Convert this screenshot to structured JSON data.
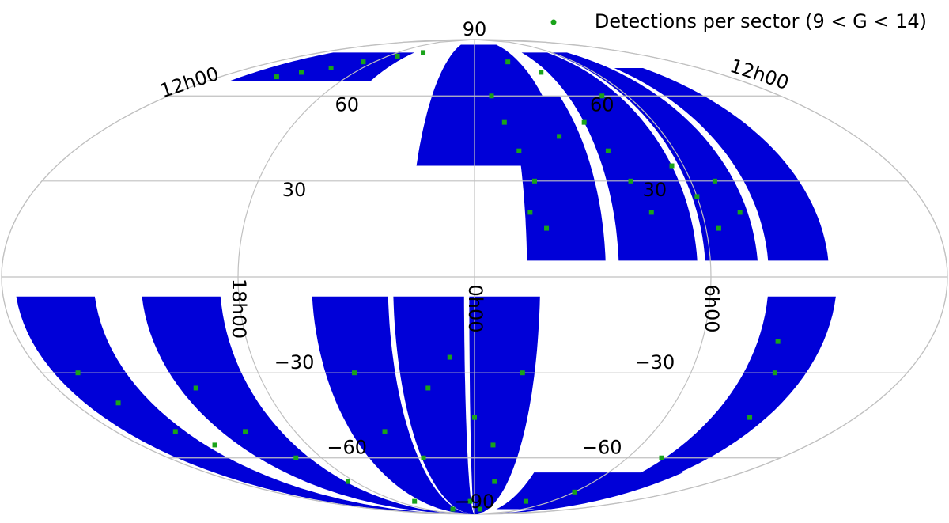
{
  "chart_data": {
    "type": "mollweide",
    "xlim": [
      -180,
      180
    ],
    "ylim": [
      -90,
      90
    ],
    "xticks": [
      {
        "value": -180,
        "label": "12h00"
      },
      {
        "value": -90,
        "label": "18h00"
      },
      {
        "value": 0,
        "label": "0h00"
      },
      {
        "value": 90,
        "label": "6h00"
      },
      {
        "value": 180,
        "label": "12h00"
      }
    ],
    "yticks": [
      90,
      60,
      30,
      {
        "value": -30,
        "label": "−30"
      },
      {
        "value": -60,
        "label": "−60"
      },
      {
        "value": -90,
        "label": "−90"
      }
    ],
    "grid": true,
    "legend": "upper right",
    "series": [
      {
        "name": "Detections per sector (9 < G < 14)",
        "color": "#1aa31a",
        "x": [
          -130,
          -115,
          -100,
          -80,
          -60,
          -140,
          10,
          15,
          20,
          25,
          22,
          28,
          40,
          55,
          60,
          65,
          70,
          85,
          90,
          95,
          100,
          105,
          30,
          50,
          75,
          -165,
          -160,
          -150,
          -140,
          -120,
          -115,
          -105,
          -95,
          -50,
          -45,
          -30,
          -20,
          -10,
          0,
          10,
          15,
          20,
          -5,
          10,
          120,
          125,
          130,
          110,
          90,
          60,
          -40,
          -70
        ],
        "values": [
          70,
          72,
          75,
          78,
          80,
          68,
          60,
          50,
          40,
          30,
          20,
          15,
          45,
          50,
          40,
          30,
          20,
          35,
          25,
          15,
          30,
          20,
          75,
          70,
          60,
          -30,
          -40,
          -50,
          -55,
          -35,
          -50,
          -60,
          -70,
          -30,
          -50,
          -60,
          -35,
          -25,
          -45,
          -55,
          -70,
          -30,
          -80,
          -85,
          -20,
          -30,
          -45,
          -60,
          -75,
          -80,
          -85,
          -80
        ]
      }
    ]
  }
}
